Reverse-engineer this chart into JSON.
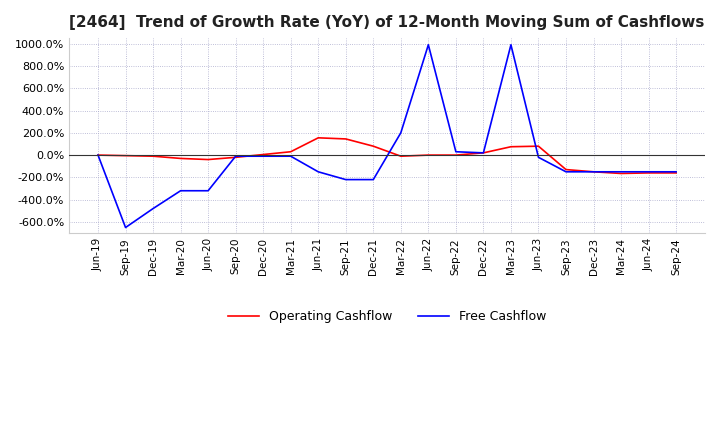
{
  "title": "[2464]  Trend of Growth Rate (YoY) of 12-Month Moving Sum of Cashflows",
  "title_fontsize": 11,
  "ylim": [
    -700,
    1050
  ],
  "yticks": [
    -600,
    -400,
    -200,
    0,
    200,
    400,
    600,
    800,
    1000
  ],
  "ytick_labels": [
    "-600.0%",
    "-400.0%",
    "-200.0%",
    "0.0%",
    "200.0%",
    "400.0%",
    "600.0%",
    "800.0%",
    "1000.0%"
  ],
  "background_color": "#ffffff",
  "plot_background_color": "#ffffff",
  "grid_color": "#aaaacc",
  "operating_color": "#ff0000",
  "free_color": "#0000ff",
  "x_labels": [
    "Jun-19",
    "Sep-19",
    "Dec-19",
    "Mar-20",
    "Jun-20",
    "Sep-20",
    "Dec-20",
    "Mar-21",
    "Jun-21",
    "Sep-21",
    "Dec-21",
    "Mar-22",
    "Jun-22",
    "Sep-22",
    "Dec-22",
    "Mar-23",
    "Jun-23",
    "Sep-23",
    "Dec-23",
    "Mar-24",
    "Jun-24",
    "Sep-24"
  ],
  "operating_cashflow": [
    0,
    -5,
    -10,
    -30,
    -40,
    -20,
    5,
    30,
    155,
    145,
    80,
    -10,
    0,
    0,
    20,
    75,
    80,
    -130,
    -150,
    -165,
    -160,
    -160
  ],
  "free_cashflow": [
    0,
    -650,
    -480,
    -320,
    -320,
    -10,
    -10,
    -10,
    -150,
    -220,
    -220,
    200,
    990,
    30,
    20,
    990,
    -20,
    -150,
    -150,
    -150,
    -150,
    -150
  ]
}
